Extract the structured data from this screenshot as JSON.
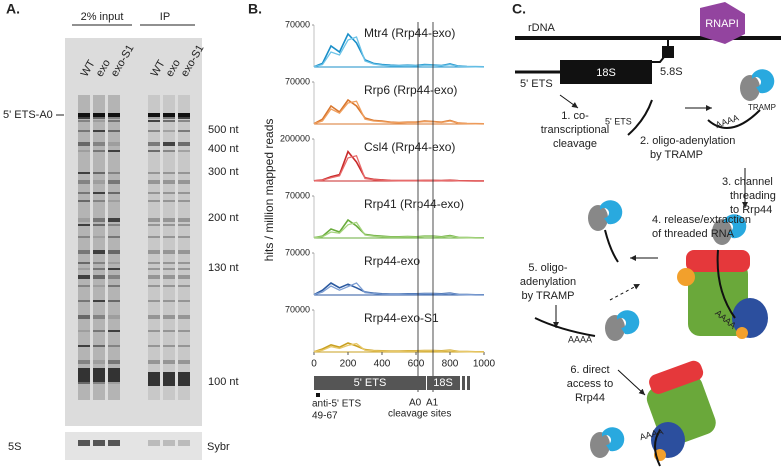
{
  "panel_a": {
    "label": "A.",
    "input_header": "2% input",
    "ip_header": "IP",
    "lanes": [
      "WT",
      "exo",
      "exo-S1",
      "WT",
      "exo",
      "exo-S1"
    ],
    "band_label": "5' ETS-A0",
    "size_markers": [
      "500 nt",
      "400 nt",
      "300 nt",
      "200 nt",
      "130 nt",
      "100 nt"
    ],
    "loading_label": "5S",
    "stain_label": "Sybr"
  },
  "panel_b": {
    "label": "B.",
    "y_label": "hits / million mapped reads",
    "region_labels": [
      "5' ETS",
      "18S"
    ],
    "probe_label": [
      "anti-5' ETS",
      "49-67"
    ],
    "site_labels": [
      "A0",
      "A1"
    ],
    "sites_caption": "cleavage sites"
  },
  "chart_data": [
    {
      "type": "line",
      "title": "Mtr4 (Rrp44-exo)",
      "x": [
        0,
        50,
        100,
        150,
        200,
        250,
        300,
        350,
        400,
        450,
        500,
        550,
        600,
        650,
        700,
        750,
        800,
        850,
        900,
        950,
        1000
      ],
      "xlim": [
        0,
        1000
      ],
      "ylim": [
        0,
        70000
      ],
      "yticks": [
        70000
      ],
      "series": [
        {
          "color": "#1a8fc9",
          "values": [
            500,
            6000,
            35000,
            25000,
            55000,
            40000,
            12000,
            6000,
            4000,
            3000,
            2500,
            3000,
            2500,
            4000,
            3500,
            2500,
            5000,
            1500,
            800,
            500,
            300
          ]
        },
        {
          "color": "#6cc3e8",
          "values": [
            500,
            4000,
            25000,
            20000,
            45000,
            50000,
            10000,
            5000,
            3000,
            2000,
            2000,
            2500,
            2000,
            3000,
            3000,
            2000,
            4000,
            1000,
            600,
            400,
            300
          ]
        }
      ]
    },
    {
      "type": "line",
      "title": "Rrp6 (Rrp44-exo)",
      "x": [
        0,
        50,
        100,
        150,
        200,
        250,
        300,
        350,
        400,
        450,
        500,
        550,
        600,
        650,
        700,
        750,
        800,
        850,
        900,
        950,
        1000
      ],
      "xlim": [
        0,
        1000
      ],
      "ylim": [
        0,
        70000
      ],
      "yticks": [
        70000
      ],
      "series": [
        {
          "color": "#d9772e",
          "values": [
            500,
            8000,
            30000,
            20000,
            40000,
            30000,
            10000,
            6000,
            5000,
            3000,
            2500,
            3000,
            3000,
            5000,
            4000,
            3000,
            6000,
            1500,
            800,
            500,
            300
          ]
        },
        {
          "color": "#f0a060",
          "values": [
            500,
            5000,
            25000,
            18000,
            35000,
            38000,
            8000,
            5000,
            4000,
            2500,
            2000,
            2500,
            2500,
            4000,
            3500,
            2500,
            5000,
            1200,
            600,
            400,
            300
          ]
        }
      ]
    },
    {
      "type": "line",
      "title": "Csl4 (Rrp44-exo)",
      "x": [
        0,
        50,
        100,
        150,
        200,
        250,
        300,
        350,
        400,
        450,
        500,
        550,
        600,
        650,
        700,
        750,
        800,
        850,
        900,
        950,
        1000
      ],
      "xlim": [
        0,
        1000
      ],
      "ylim": [
        0,
        200000
      ],
      "yticks": [
        200000
      ],
      "series": [
        {
          "color": "#c92a2a",
          "values": [
            1000,
            5000,
            20000,
            30000,
            140000,
            90000,
            15000,
            8000,
            5000,
            3000,
            2000,
            2000,
            2000,
            3000,
            3000,
            2000,
            4000,
            1500,
            800,
            500,
            300
          ]
        },
        {
          "color": "#e86b6b",
          "values": [
            1000,
            4000,
            15000,
            25000,
            110000,
            120000,
            12000,
            6000,
            4000,
            2500,
            1500,
            1500,
            1500,
            2500,
            2500,
            1500,
            3000,
            1000,
            600,
            400,
            300
          ]
        }
      ]
    },
    {
      "type": "line",
      "title": "Rrp41 (Rrp44-exo)",
      "x": [
        0,
        50,
        100,
        150,
        200,
        250,
        300,
        350,
        400,
        450,
        500,
        550,
        600,
        650,
        700,
        750,
        800,
        850,
        900,
        950,
        1000
      ],
      "xlim": [
        0,
        1000
      ],
      "ylim": [
        0,
        70000
      ],
      "yticks": [
        70000
      ],
      "series": [
        {
          "color": "#6aac3c",
          "values": [
            500,
            3000,
            15000,
            10000,
            30000,
            20000,
            6000,
            4000,
            3000,
            2000,
            2000,
            2500,
            2000,
            3000,
            3000,
            2000,
            4000,
            1000,
            600,
            400,
            300
          ]
        },
        {
          "color": "#a5d47e",
          "values": [
            500,
            2000,
            10000,
            8000,
            22000,
            26000,
            5000,
            3000,
            2000,
            1500,
            1500,
            2000,
            1500,
            2500,
            2500,
            1500,
            3000,
            800,
            500,
            300,
            200
          ]
        }
      ]
    },
    {
      "type": "line",
      "title": "Rrp44-exo",
      "x": [
        0,
        50,
        100,
        150,
        200,
        250,
        300,
        350,
        400,
        450,
        500,
        550,
        600,
        650,
        700,
        750,
        800,
        850,
        900,
        950,
        1000
      ],
      "xlim": [
        0,
        1000
      ],
      "ylim": [
        0,
        70000
      ],
      "yticks": [
        70000
      ],
      "series": [
        {
          "color": "#2c5aa0",
          "values": [
            500,
            8000,
            20000,
            12000,
            18000,
            12000,
            5000,
            3000,
            2000,
            1500,
            1500,
            2000,
            2000,
            2500,
            2500,
            2000,
            3000,
            1000,
            600,
            400,
            300
          ]
        },
        {
          "color": "#7d9ed3",
          "values": [
            500,
            5000,
            15000,
            8000,
            14000,
            20000,
            4000,
            2500,
            1500,
            1200,
            1200,
            1500,
            1500,
            2000,
            2000,
            1500,
            2500,
            800,
            500,
            300,
            200
          ]
        }
      ]
    },
    {
      "type": "line",
      "title": "Rrp44-exo-S1",
      "x": [
        0,
        50,
        100,
        150,
        200,
        250,
        300,
        350,
        400,
        450,
        500,
        550,
        600,
        650,
        700,
        750,
        800,
        850,
        900,
        950,
        1000
      ],
      "xlim": [
        0,
        1000
      ],
      "ylim": [
        0,
        70000
      ],
      "yticks": [
        70000
      ],
      "xticks": [
        0,
        200,
        400,
        600,
        800,
        1000
      ],
      "series": [
        {
          "color": "#c9a020",
          "values": [
            500,
            5000,
            12000,
            8000,
            15000,
            10000,
            4000,
            2500,
            2000,
            1500,
            1500,
            2000,
            2000,
            2500,
            2500,
            2000,
            3000,
            1000,
            600,
            400,
            300
          ]
        },
        {
          "color": "#e8c868",
          "values": [
            500,
            3000,
            9000,
            6000,
            11000,
            14000,
            3000,
            2000,
            1500,
            1200,
            1200,
            1500,
            1500,
            2000,
            2000,
            1500,
            2500,
            800,
            500,
            300,
            200
          ]
        }
      ]
    }
  ],
  "panel_c": {
    "label": "C.",
    "rdna": "rDNA",
    "polymerase": "RNAPI",
    "ets": "5' ETS",
    "rrna18": "18S",
    "rrna58": "5.8S",
    "step1": [
      "1. co-",
      "transcriptional",
      "cleavage"
    ],
    "ets_fragment": "5' ETS",
    "step2": [
      "2. oligo-adenylation",
      "by TRAMP"
    ],
    "tail_1": "AAAA",
    "tramp": "TRAMP",
    "step3": [
      "3. channel",
      "threading",
      "to Rrp44"
    ],
    "step4": [
      "4. release/extraction",
      "of threaded RNA"
    ],
    "step5": [
      "5. oligo-",
      "adenylation",
      "by TRAMP"
    ],
    "tail_2": "AAAA",
    "tail_3": "AAAA",
    "step6": [
      "6. direct",
      "access to",
      "Rrp44"
    ],
    "tail_4": "AAAA"
  }
}
